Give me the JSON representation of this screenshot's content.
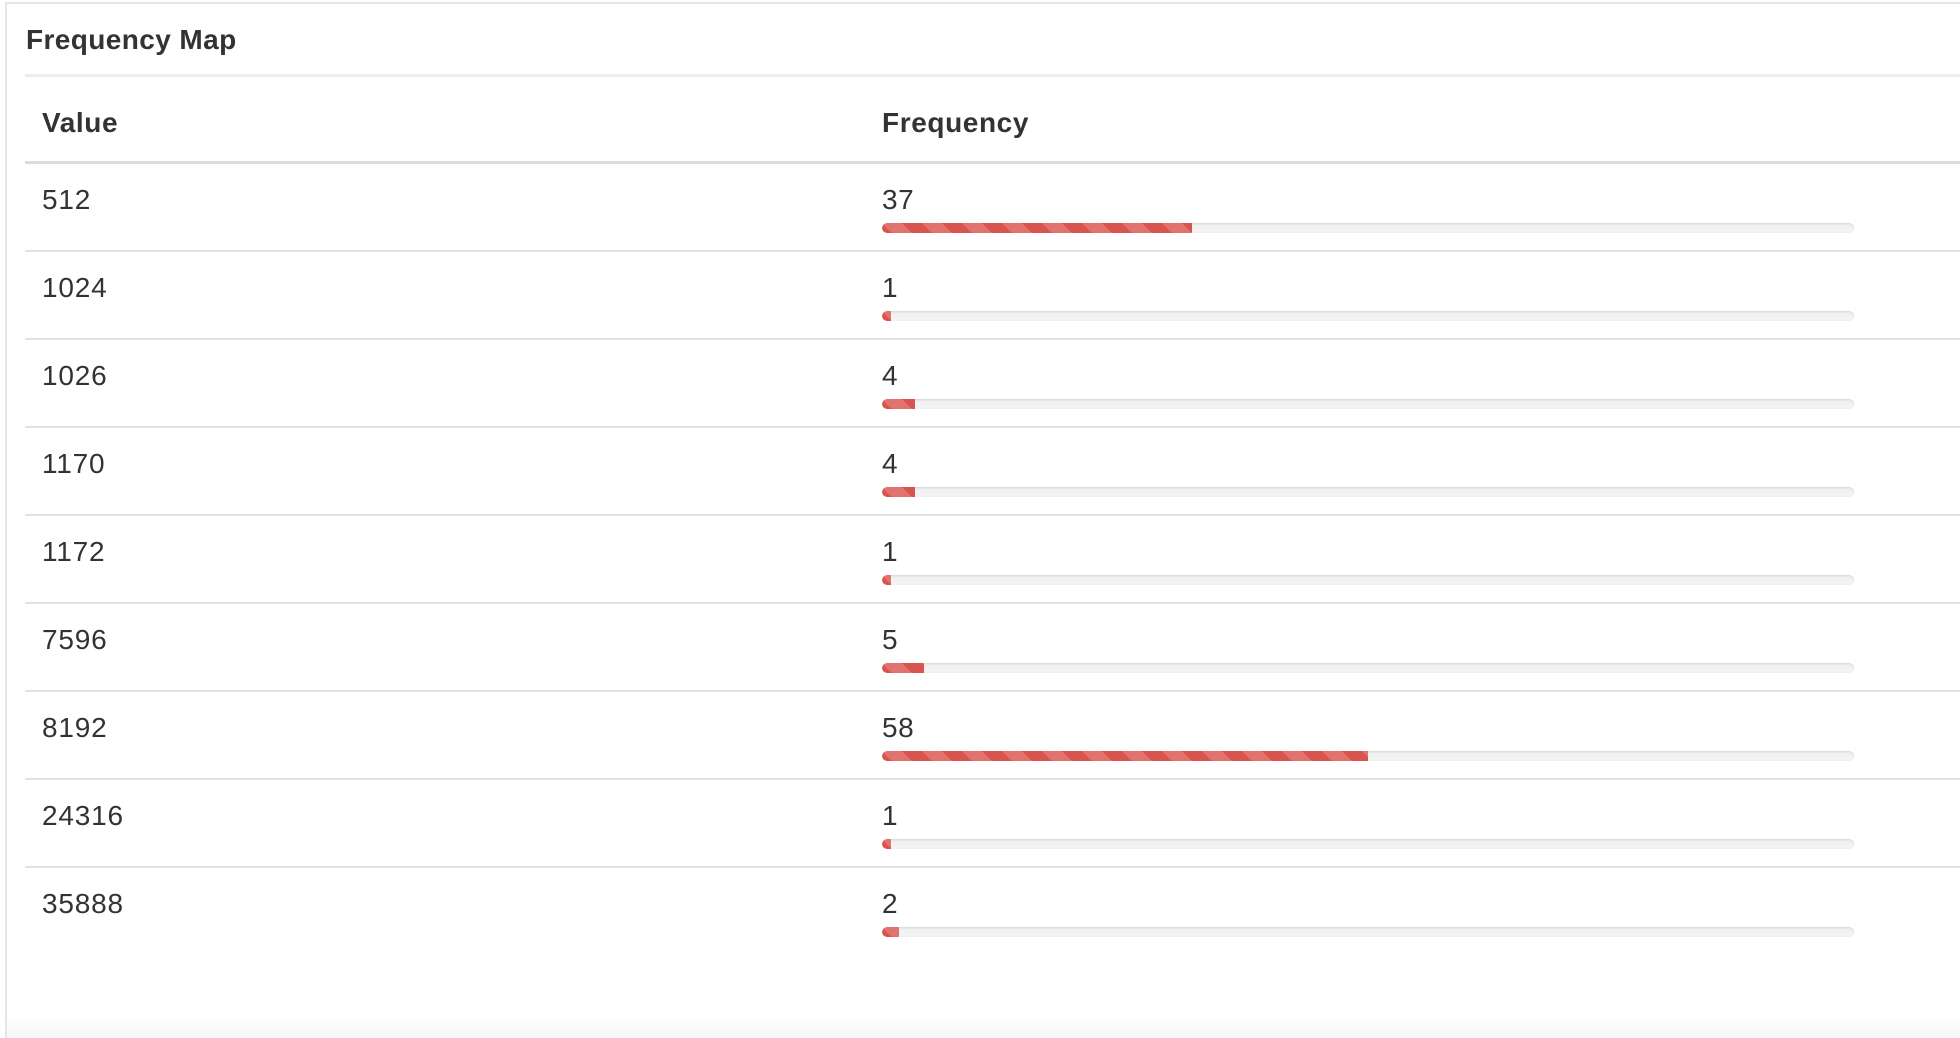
{
  "panel": {
    "title": "Frequency Map"
  },
  "table": {
    "headers": {
      "value": "Value",
      "frequency": "Frequency"
    },
    "max_scale": 116,
    "accent_color": "#d9534f",
    "rows": [
      {
        "value": "512",
        "frequency": "37",
        "bar_fraction": 0.319
      },
      {
        "value": "1024",
        "frequency": "1",
        "bar_fraction": 0.009
      },
      {
        "value": "1026",
        "frequency": "4",
        "bar_fraction": 0.034
      },
      {
        "value": "1170",
        "frequency": "4",
        "bar_fraction": 0.034
      },
      {
        "value": "1172",
        "frequency": "1",
        "bar_fraction": 0.009
      },
      {
        "value": "7596",
        "frequency": "5",
        "bar_fraction": 0.043
      },
      {
        "value": "8192",
        "frequency": "58",
        "bar_fraction": 0.5
      },
      {
        "value": "24316",
        "frequency": "1",
        "bar_fraction": 0.009
      },
      {
        "value": "35888",
        "frequency": "2",
        "bar_fraction": 0.017
      }
    ]
  }
}
